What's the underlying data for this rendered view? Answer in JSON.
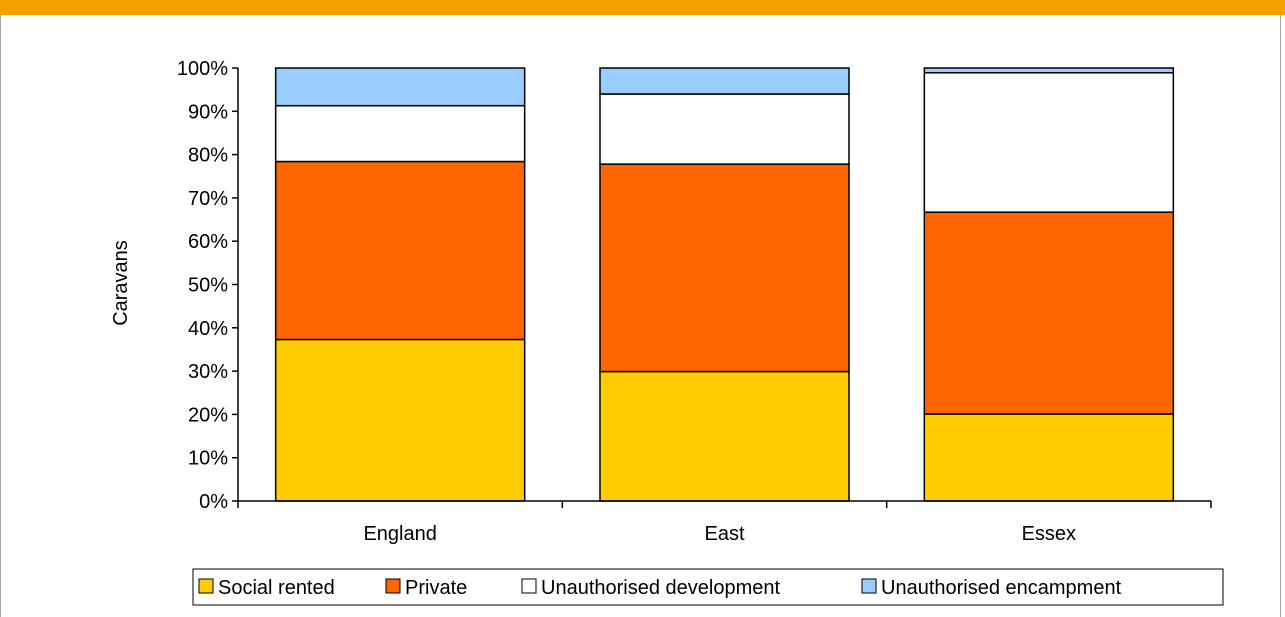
{
  "colors": {
    "top_bar": "#f5a000",
    "frame": "#a6a6a6"
  },
  "chart_data": {
    "type": "bar",
    "stacked": true,
    "percent": true,
    "categories": [
      "England",
      "East",
      "Essex"
    ],
    "series": [
      {
        "name": "Social rented",
        "color": "#ffcc00",
        "values": [
          37.3,
          29.9,
          20.1
        ]
      },
      {
        "name": "Private",
        "color": "#ff6600",
        "values": [
          41.1,
          47.9,
          46.6
        ]
      },
      {
        "name": "Unauthorised development",
        "color": "#ffffff",
        "values": [
          12.9,
          16.2,
          32.2
        ]
      },
      {
        "name": "Unauthorised encampment",
        "color": "#99ccff",
        "values": [
          8.7,
          6.0,
          1.1
        ]
      }
    ],
    "xlabel": "",
    "ylabel": "Caravans",
    "ylim": [
      0,
      100
    ],
    "y_ticks": [
      "0%",
      "10%",
      "20%",
      "30%",
      "40%",
      "50%",
      "60%",
      "70%",
      "80%",
      "90%",
      "100%"
    ],
    "grid": false,
    "legend_position": "bottom"
  }
}
